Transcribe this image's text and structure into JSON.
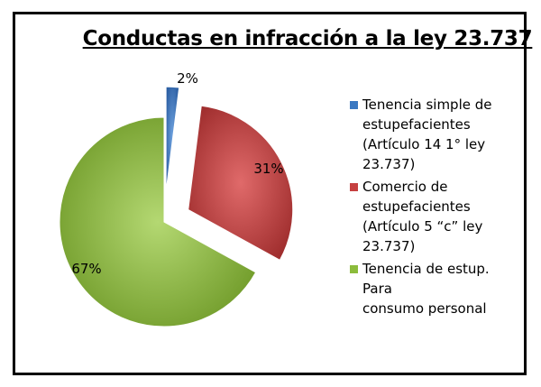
{
  "chart_data": {
    "type": "pie",
    "title": "Conductas en infracción a la ley 23.737",
    "categories": [
      "Tenencia simple de\nestupefacientes\n(Artículo 14 1° ley\n23.737)",
      "Comercio de\nestupefacientes\n(Artículo 5 “c” ley\n23.737)",
      "Tenencia de estup. Para\nconsumo personal"
    ],
    "values": [
      2,
      31,
      67
    ],
    "labels": [
      "2%",
      "31%",
      "67%"
    ],
    "colors": [
      "#3a78c2",
      "#c64040",
      "#8cbc3c"
    ],
    "exploded": true,
    "legend_position": "right"
  }
}
